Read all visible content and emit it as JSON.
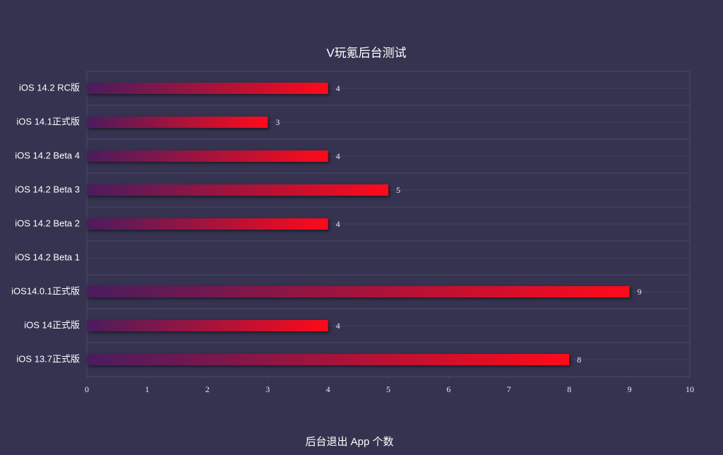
{
  "chart_data": {
    "type": "bar",
    "orientation": "horizontal",
    "title": "V玩氪后台测试",
    "x_label": "后台退出 App 个数",
    "categories": [
      "iOS 14.2 RC版",
      "iOS 14.1正式版",
      "iOS 14.2 Beta 4",
      "iOS 14.2 Beta 3",
      "iOS 14.2 Beta 2",
      "iOS 14.2 Beta 1",
      "iOS14.0.1正式版",
      "iOS 14正式版",
      "iOS 13.7正式版"
    ],
    "values": [
      4,
      3,
      4,
      5,
      4,
      null,
      9,
      4,
      8
    ],
    "color": [
      "#4a1c5e",
      "#ff0a1a"
    ],
    "xlim": [
      0,
      10
    ],
    "xticks": [
      0,
      1,
      2,
      3,
      4,
      5,
      6,
      7,
      8,
      9,
      10
    ],
    "grid": true
  }
}
